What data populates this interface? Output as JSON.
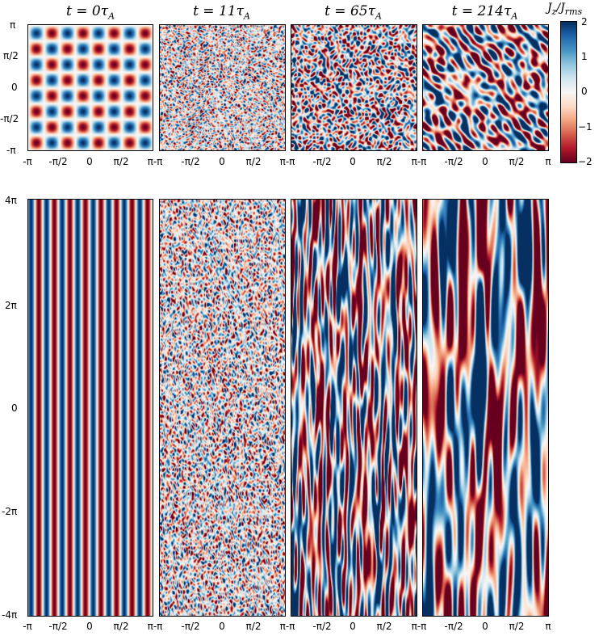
{
  "chart_data": {
    "type": "heatmap",
    "quantity_label": "J_z/J_rms",
    "colormap": [
      "#67001f",
      "#b2182b",
      "#d6604d",
      "#f4a582",
      "#fddbc7",
      "#f7f7f7",
      "#d1e5f0",
      "#92c5de",
      "#4393c3",
      "#2166ac",
      "#053061"
    ],
    "color_range": [
      -2,
      2
    ],
    "colorbar_ticks": [
      "2",
      "1",
      "0",
      "−1",
      "−2"
    ],
    "times": [
      "t = 0τ_A",
      "t = 11τ_A",
      "t = 65τ_A",
      "t = 214τ_A"
    ],
    "top_row": {
      "xlabel": "",
      "ylabel": "",
      "xlim": [
        "-π",
        "π"
      ],
      "ylim": [
        "-π",
        "π"
      ],
      "x_ticks": [
        "-π",
        "-π/2",
        "0",
        "π/2",
        "π"
      ],
      "y_ticks": [
        "π",
        "π/2",
        "0",
        "-π/2",
        "-π"
      ]
    },
    "bottom_row": {
      "xlabel": "",
      "ylabel": "",
      "xlim": [
        "-π",
        "π"
      ],
      "ylim": [
        "-4π",
        "4π"
      ],
      "x_ticks": [
        "-π",
        "-π/2",
        "0",
        "π/2",
        "π"
      ],
      "y_ticks": [
        "4π",
        "2π",
        "0",
        "-2π",
        "-4π"
      ]
    }
  }
}
